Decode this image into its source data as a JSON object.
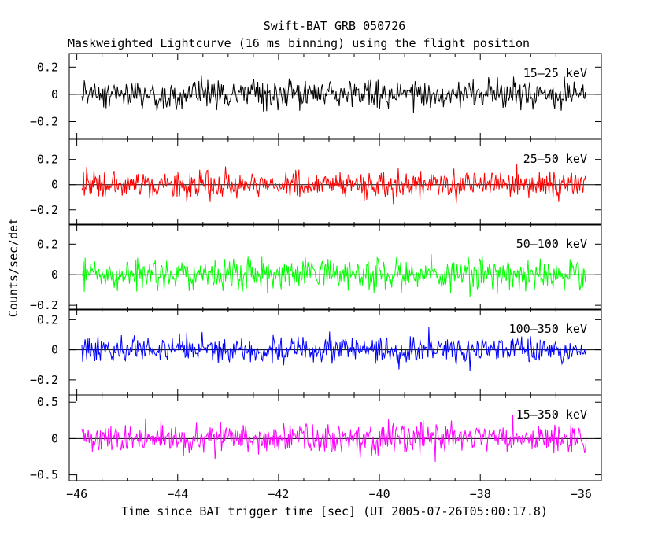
{
  "chart_data": {
    "type": "line",
    "title": "Swift-BAT GRB 050726",
    "subtitle": "Maskweighted Lightcurve (16 ms binning) using the flight position",
    "xlabel": "Time since BAT trigger time [sec] (UT 2005-07-26T05:00:17.8)",
    "ylabel": "Counts/sec/det",
    "xlim": [
      -46.15,
      -35.6
    ],
    "x_ticks": [
      -46,
      -44,
      -42,
      -40,
      -38,
      -36
    ],
    "x_tick_labels": [
      "−46",
      "−44",
      "−42",
      "−40",
      "−38",
      "−36"
    ],
    "data_x_range": [
      -45.9,
      -35.9
    ],
    "bin_width_sec": 0.016,
    "grid": false,
    "panels": [
      {
        "name": "15–25 keV",
        "color": "#000000",
        "ylim": [
          -0.33,
          0.3
        ],
        "y_ticks": [
          -0.2,
          0,
          0.2
        ],
        "y_tick_labels": [
          "−0.2",
          "0",
          "0.2"
        ],
        "noise_sigma": 0.09
      },
      {
        "name": "25–50 keV",
        "color": "#ff0000",
        "ylim": [
          -0.32,
          0.36
        ],
        "y_ticks": [
          -0.2,
          0,
          0.2
        ],
        "y_tick_labels": [
          "−0.2",
          "0",
          "0.2"
        ],
        "noise_sigma": 0.095
      },
      {
        "name": "50–100 keV",
        "color": "#00ff00",
        "ylim": [
          -0.23,
          0.33
        ],
        "y_ticks": [
          -0.2,
          0,
          0.2
        ],
        "y_tick_labels": [
          "−0.2",
          "0",
          "0.2"
        ],
        "noise_sigma": 0.085
      },
      {
        "name": "100–350 keV",
        "color": "#0000ff",
        "ylim": [
          -0.3,
          0.27
        ],
        "y_ticks": [
          -0.2,
          0,
          0.2
        ],
        "y_tick_labels": [
          "−0.2",
          "0",
          "0.2"
        ],
        "noise_sigma": 0.08
      },
      {
        "name": "15–350 keV",
        "color": "#ff00ff",
        "ylim": [
          -0.58,
          0.6
        ],
        "y_ticks": [
          -0.5,
          0,
          0.5
        ],
        "y_tick_labels": [
          "−0.5",
          "0",
          "0.5"
        ],
        "noise_sigma": 0.18
      }
    ]
  }
}
